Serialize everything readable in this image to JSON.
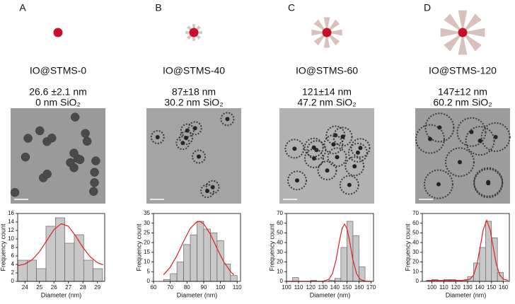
{
  "chart_data": [
    {
      "type": "histogram",
      "panel": "A",
      "title": "IO@STMS-0",
      "size": "26.6 ±2.1 nm",
      "shell": "0 nm SiO₂",
      "xlabel": "Diameter (nm)",
      "ylabel": "Frequency count",
      "color": "#c8c8c8",
      "bins": [
        23.5,
        24.15,
        24.8,
        25.45,
        26.1,
        26.75,
        27.4,
        28.05,
        28.7,
        29.35
      ],
      "counts": [
        5,
        5,
        3,
        13,
        15,
        9,
        11,
        5,
        3
      ],
      "xlim": [
        23.5,
        29.5
      ],
      "xticks": [
        24,
        25,
        26,
        27,
        28,
        29
      ],
      "ylim": [
        0,
        16
      ],
      "yticks": [
        0,
        2,
        4,
        6,
        8,
        10,
        12,
        14,
        16
      ],
      "fit": {
        "color": "#e02020",
        "x": [
          23.5,
          24,
          24.5,
          25,
          25.5,
          26,
          26.5,
          27,
          27.5,
          28,
          28.5,
          29,
          29.4
        ],
        "y": [
          3.7,
          4.1,
          5.1,
          7.0,
          9.6,
          12.2,
          13.6,
          13.0,
          10.7,
          8.0,
          5.8,
          4.4,
          3.9
        ]
      }
    },
    {
      "type": "histogram",
      "panel": "B",
      "title": "IO@STMS-40",
      "size": "87±18 nm",
      "shell": "30.2 nm SiO₂",
      "xlabel": "Diameter (nm)",
      "ylabel": "Frequency count",
      "color": "#c8c8c8",
      "bins": [
        66,
        70,
        74,
        78,
        82,
        86,
        90,
        94,
        98,
        102,
        106,
        110
      ],
      "counts": [
        1,
        4,
        10,
        19,
        24,
        31,
        27,
        25,
        21,
        9,
        3
      ],
      "xlim": [
        60,
        112
      ],
      "xticks": [
        60,
        70,
        80,
        90,
        100,
        110
      ],
      "ylim": [
        0,
        35
      ],
      "yticks": [
        0,
        5,
        10,
        15,
        20,
        25,
        30,
        35
      ],
      "fit": {
        "color": "#e02020",
        "x": [
          66,
          70,
          74,
          78,
          82,
          86,
          88,
          90,
          94,
          98,
          102,
          106,
          108
        ],
        "y": [
          3.4,
          7.3,
          13.3,
          20.7,
          27.4,
          30.8,
          30.8,
          29.6,
          24.3,
          16.9,
          10.1,
          5.1,
          3.4
        ]
      }
    },
    {
      "type": "histogram",
      "panel": "C",
      "title": "IO@STMS-60",
      "size": "121±14 nm",
      "shell": "47.2 nm SiO₂",
      "xlabel": "Diameter (nm)",
      "ylabel": "Frequency count",
      "color": "#c8c8c8",
      "bins": [
        100,
        105,
        110,
        115,
        120,
        125,
        130,
        135,
        140,
        145,
        150,
        155,
        160,
        165
      ],
      "counts": [
        0,
        4,
        0,
        0,
        1,
        0,
        0,
        1,
        3,
        35,
        62,
        47,
        15
      ],
      "xlim": [
        100,
        172
      ],
      "xticks": [
        100,
        110,
        120,
        130,
        140,
        150,
        160,
        170
      ],
      "ylim": [
        0,
        70
      ],
      "yticks": [
        0,
        10,
        20,
        30,
        40,
        50,
        60,
        70
      ],
      "fit": {
        "color": "#e02020",
        "x": [
          100,
          120,
          130,
          135,
          138,
          141,
          144,
          146,
          148,
          150,
          152,
          155,
          158,
          161,
          165,
          170
        ],
        "y": [
          0,
          0,
          0,
          2.0,
          8.0,
          22.1,
          42.9,
          54.5,
          59,
          54.5,
          42.9,
          22.1,
          8.0,
          2.0,
          0.2,
          0
        ]
      }
    },
    {
      "type": "histogram",
      "panel": "D",
      "title": "IO@STMS-120",
      "size": "147±12 nm",
      "shell": "60.2 nm SiO₂",
      "xlabel": "Diameter (nm)",
      "ylabel": "Frequency count",
      "color": "#c8c8c8",
      "bins": [
        95,
        100,
        105,
        110,
        115,
        120,
        125,
        130,
        135,
        140,
        145,
        150,
        155,
        160
      ],
      "counts": [
        1,
        2,
        1,
        2,
        2,
        1,
        1,
        5,
        19,
        35,
        62,
        45,
        9
      ],
      "xlim": [
        92,
        165
      ],
      "xticks": [
        100,
        110,
        120,
        130,
        140,
        150,
        160
      ],
      "ylim": [
        0,
        70
      ],
      "yticks": [
        0,
        10,
        20,
        30,
        40,
        50,
        60,
        70
      ],
      "fit": {
        "color": "#e02020",
        "x": [
          96,
          110,
          125,
          132,
          135,
          138,
          141,
          143,
          146,
          149,
          151,
          154,
          157,
          160,
          164
        ],
        "y": [
          1,
          1,
          1,
          2.2,
          6.5,
          18.2,
          38.6,
          52.8,
          63,
          52.8,
          38.6,
          18.2,
          6.5,
          2.2,
          1.1
        ]
      }
    }
  ]
}
